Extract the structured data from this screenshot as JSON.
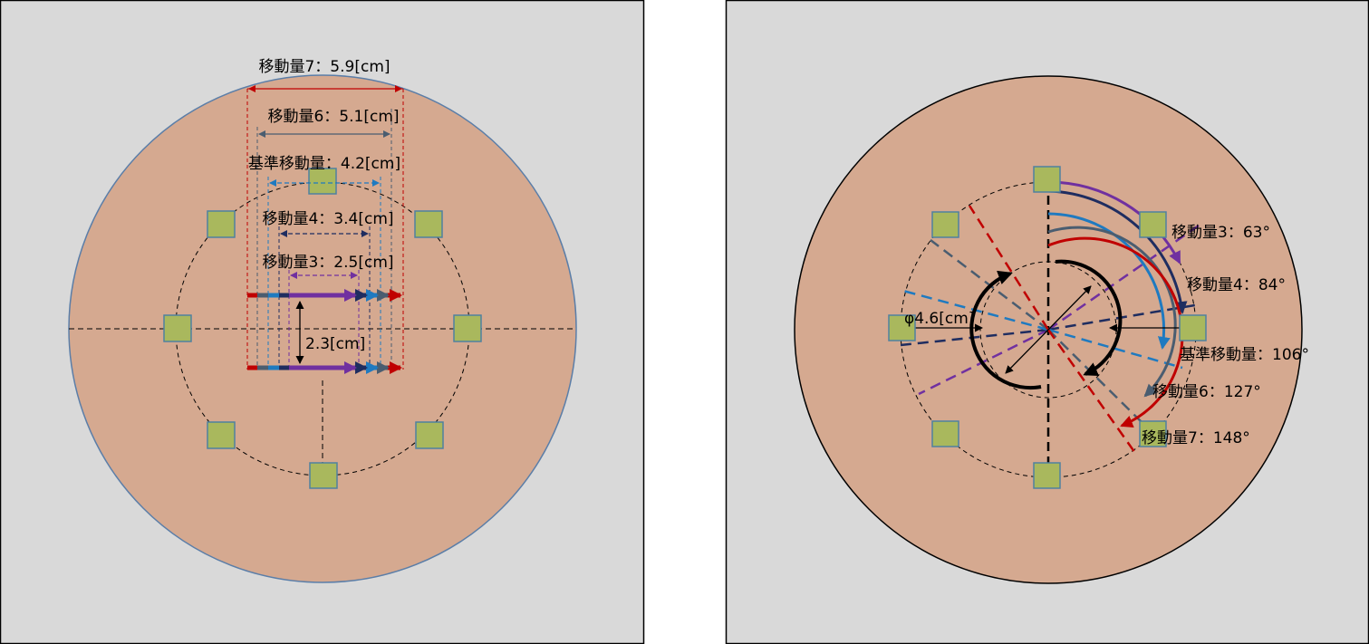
{
  "left_panel": {
    "labels": {
      "amount7": "移動量7：5.9[cm]",
      "amount6": "移動量6：5.1[cm]",
      "base": "基準移動量：4.2[cm]",
      "amount4": "移動量4：3.4[cm]",
      "amount3": "移動量3：2.5[cm]",
      "gap": "2.3[cm]"
    }
  },
  "right_panel": {
    "labels": {
      "diameter": "φ4.6[cm]",
      "amount3": "移動量3：63°",
      "amount4": "移動量4：84°",
      "base": "基準移動量：106°",
      "amount6": "移動量6：127°",
      "amount7": "移動量7：148°"
    }
  },
  "colors": {
    "background": "#d9d9d9",
    "disc": "#d5a990",
    "pad_fill": "#a9b85d",
    "pad_stroke": "#4f81a0",
    "red": "#c00000",
    "slate": "#4a5d70",
    "blue": "#1f7ac0",
    "navy": "#1f2d60",
    "purple": "#7030a0"
  }
}
